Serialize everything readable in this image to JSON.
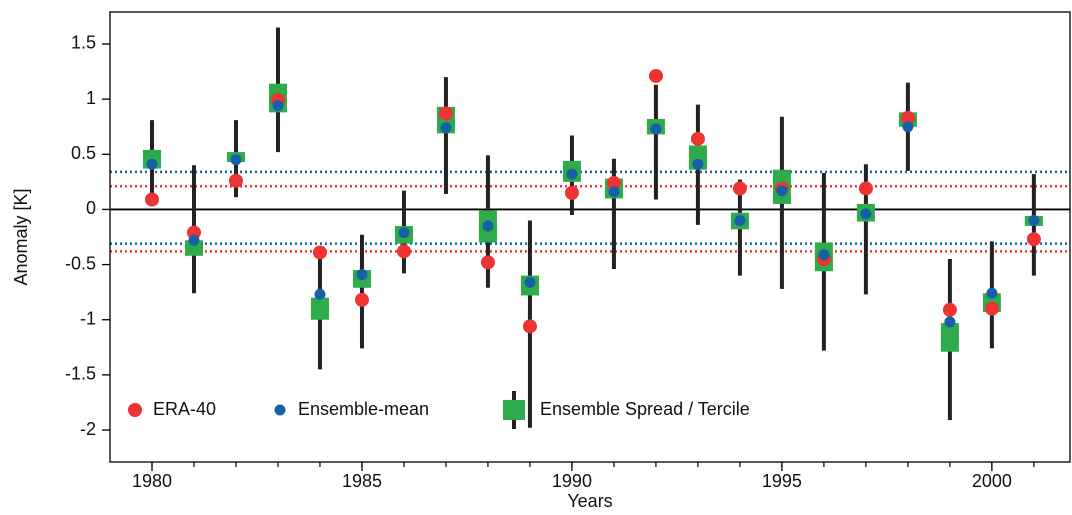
{
  "chart_data": {
    "type": "ensemble",
    "xlabel": "Years",
    "ylabel": "Anomaly [K]",
    "x": [
      1980,
      1981,
      1982,
      1983,
      1984,
      1985,
      1986,
      1987,
      1988,
      1989,
      1990,
      1991,
      1992,
      1993,
      1994,
      1995,
      1996,
      1997,
      1998,
      1999,
      2000,
      2001
    ],
    "series": [
      {
        "name": "ERA-40",
        "color": "#ee3333",
        "values": [
          0.09,
          -0.21,
          0.26,
          0.99,
          -0.39,
          -0.82,
          -0.38,
          0.87,
          -0.48,
          -1.06,
          0.15,
          0.24,
          1.21,
          0.64,
          0.19,
          0.19,
          -0.45,
          0.19,
          0.83,
          -0.91,
          -0.9,
          -0.27
        ]
      },
      {
        "name": "Ensemble-mean",
        "color": "#1560a8",
        "values": [
          0.41,
          -0.28,
          0.45,
          0.94,
          -0.77,
          -0.59,
          -0.21,
          0.74,
          -0.15,
          -0.66,
          0.32,
          0.16,
          0.73,
          0.41,
          -0.1,
          0.17,
          -0.41,
          -0.04,
          0.75,
          -1.02,
          -0.76,
          -0.1
        ]
      },
      {
        "name": "Ensemble Spread / Tercile",
        "color": "#2eab4a",
        "whisker_color": "#222222",
        "low": [
          0.37,
          -0.42,
          0.43,
          0.88,
          -1.0,
          -0.71,
          -0.31,
          0.69,
          -0.3,
          -0.78,
          0.25,
          0.1,
          0.68,
          0.36,
          -0.18,
          0.05,
          -0.56,
          -0.11,
          0.75,
          -1.29,
          -0.93,
          -0.15
        ],
        "high": [
          0.54,
          -0.28,
          0.52,
          1.14,
          -0.8,
          -0.55,
          -0.15,
          0.93,
          -0.01,
          -0.6,
          0.44,
          0.28,
          0.82,
          0.58,
          -0.03,
          0.36,
          -0.3,
          0.05,
          0.88,
          -1.03,
          -0.76,
          -0.06
        ],
        "whisker_low": [
          0.08,
          -0.76,
          0.11,
          0.52,
          -1.45,
          -1.26,
          -0.58,
          0.14,
          -0.71,
          -1.98,
          -0.05,
          -0.54,
          0.09,
          -0.14,
          -0.6,
          -0.72,
          -1.28,
          -0.77,
          0.35,
          -1.91,
          -1.26,
          -0.6
        ],
        "whisker_high": [
          0.81,
          0.4,
          0.81,
          1.65,
          -0.38,
          -0.23,
          0.17,
          1.2,
          0.49,
          -0.1,
          0.67,
          0.46,
          1.13,
          0.95,
          0.27,
          0.84,
          0.33,
          0.41,
          1.15,
          -0.45,
          -0.29,
          0.32
        ]
      }
    ],
    "hlines": [
      {
        "value": 0,
        "color": "#000000",
        "style": "solid"
      },
      {
        "value": 0.34,
        "color": "#1560a8",
        "style": "dotted"
      },
      {
        "value": 0.21,
        "color": "#ee3333",
        "style": "dotted"
      },
      {
        "value": -0.31,
        "color": "#1560a8",
        "style": "dotted"
      },
      {
        "value": -0.38,
        "color": "#ee3333",
        "style": "dotted"
      }
    ],
    "xlim": [
      1979,
      2001.86
    ],
    "xticks": [
      1980,
      1985,
      1990,
      1995,
      2000
    ],
    "ylim": [
      -2.29,
      1.79
    ],
    "yticks": [
      1.5,
      1,
      0.5,
      0,
      -0.5,
      -1,
      -1.5,
      -2
    ],
    "legend": "lower left"
  }
}
